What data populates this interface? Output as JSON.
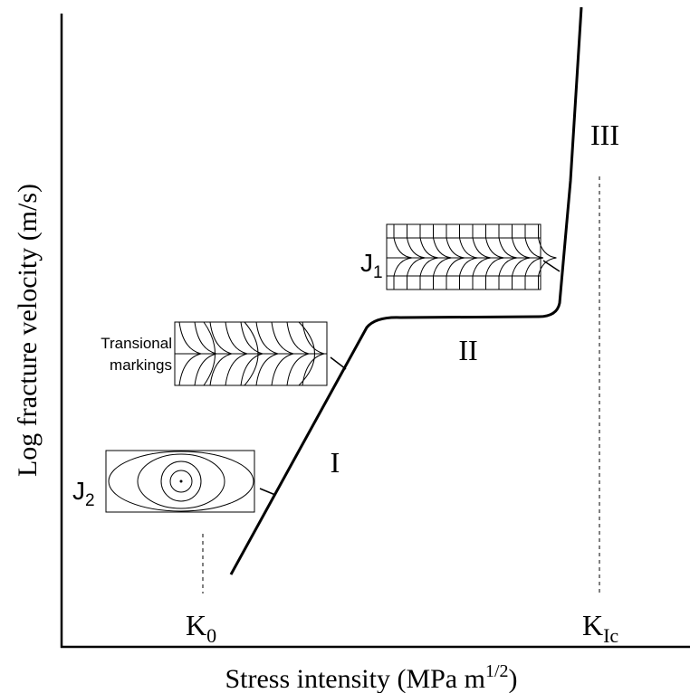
{
  "axes": {
    "x_label": {
      "text": "Stress intensity (MPa m",
      "sup": "1/2",
      "close": ")"
    },
    "y_label": "Log fracture velocity (m/s)"
  },
  "regions": [
    {
      "label": "I"
    },
    {
      "label": "II"
    },
    {
      "label": "III"
    }
  ],
  "thresholds": [
    {
      "symbol": "K",
      "subscript": "0"
    },
    {
      "symbol": "K",
      "subscript": "Ic"
    }
  ],
  "insets": [
    {
      "symbol": "J",
      "subscript": "1"
    },
    {
      "lines": [
        "Transional",
        "markings"
      ]
    },
    {
      "symbol": "J",
      "subscript": "2"
    }
  ]
}
